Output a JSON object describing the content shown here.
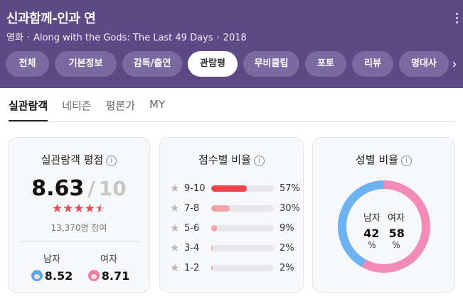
{
  "header": {
    "title": "신과함께-인과 연",
    "genre": "영화",
    "english_title": "Along with the Gods: The Last 49 Days",
    "year": "2018",
    "separator": "·"
  },
  "tabs": [
    {
      "label": "전체",
      "active": false
    },
    {
      "label": "기본정보",
      "active": false
    },
    {
      "label": "감독/출연",
      "active": false
    },
    {
      "label": "관람평",
      "active": true
    },
    {
      "label": "무비클립",
      "active": false
    },
    {
      "label": "포토",
      "active": false
    },
    {
      "label": "리뷰",
      "active": false
    },
    {
      "label": "명대사",
      "active": false
    }
  ],
  "subtabs": [
    {
      "label": "실관람객",
      "active": true
    },
    {
      "label": "네티즌",
      "active": false
    },
    {
      "label": "평론가",
      "active": false
    },
    {
      "label": "MY",
      "active": false
    }
  ],
  "rating_card": {
    "title": "실관람객 평점",
    "score": "8.63",
    "separator": "/",
    "max": "10",
    "star_rating": 4.5,
    "participants": "13,370명 참여",
    "male_label": "남자",
    "male_score": "8.52",
    "female_label": "여자",
    "female_score": "8.71"
  },
  "distribution_card": {
    "title": "점수별 비율",
    "rows": [
      {
        "label": "9-10",
        "percent": 57,
        "percent_text": "57%",
        "color": "#f0454e"
      },
      {
        "label": "7-8",
        "percent": 30,
        "percent_text": "30%",
        "color": "#f6a3a8"
      },
      {
        "label": "5-6",
        "percent": 9,
        "percent_text": "9%",
        "color": "#f6a3a8"
      },
      {
        "label": "3-4",
        "percent": 2,
        "percent_text": "2%",
        "color": "#f6a3a8"
      },
      {
        "label": "1-2",
        "percent": 2,
        "percent_text": "2%",
        "color": "#f6a3a8"
      }
    ]
  },
  "gender_card": {
    "title": "성별 비율",
    "male_label": "남자",
    "female_label": "여자",
    "male_percent": 42,
    "female_percent": 58,
    "male_value": "42",
    "female_value": "58",
    "unit": "%",
    "male_color": "#6db3f2",
    "female_color": "#f28bb8"
  },
  "icons": {
    "info": "info-icon",
    "info_glyph": "i",
    "more": "more-vertical-icon",
    "next": "chevron-right-icon",
    "next_glyph": "›",
    "star_glyph": "★"
  }
}
